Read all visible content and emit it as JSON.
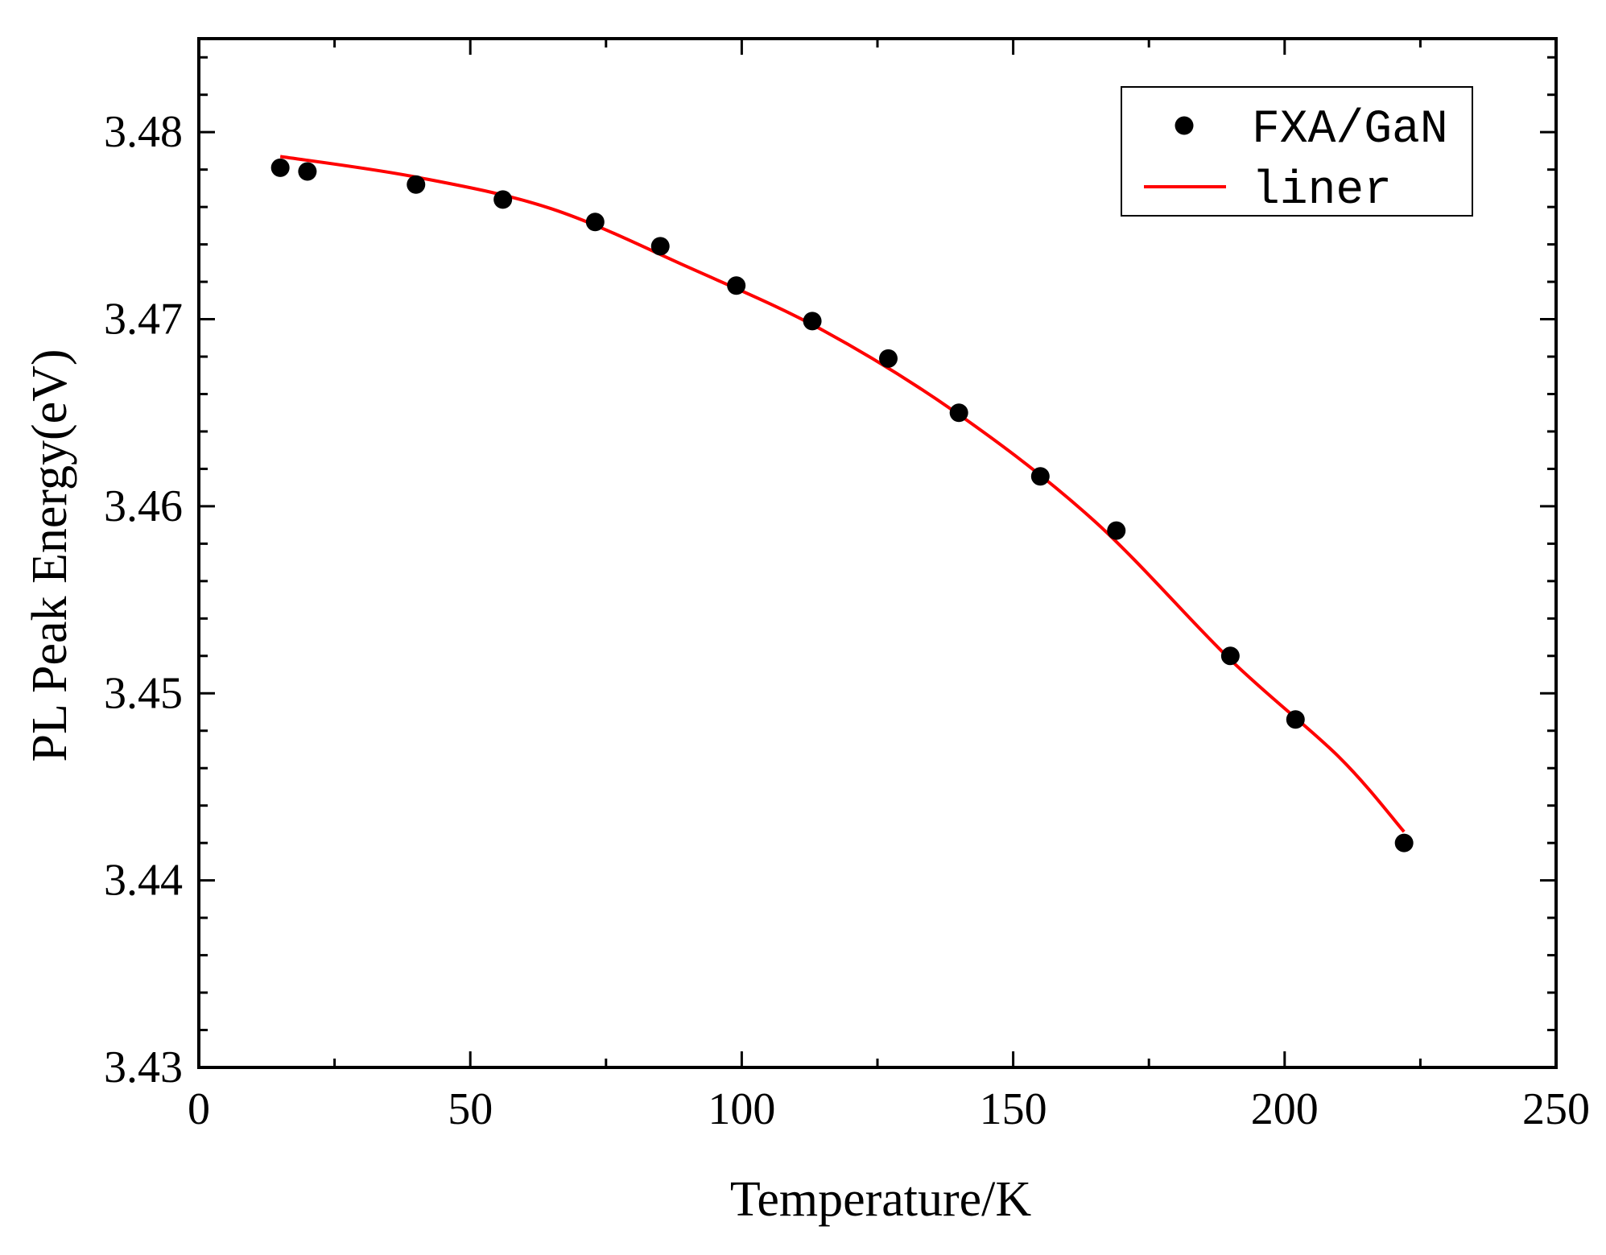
{
  "chart_data": {
    "type": "scatter",
    "xlabel": "Temperature/K",
    "ylabel": "PL Peak Energy(eV)",
    "xlim": [
      0,
      250
    ],
    "ylim": [
      3.43,
      3.485
    ],
    "x_ticks": [
      0,
      50,
      100,
      150,
      200,
      250
    ],
    "x_tick_labels": [
      "0",
      "50",
      "100",
      "150",
      "200",
      "250"
    ],
    "y_ticks": [
      3.43,
      3.44,
      3.45,
      3.46,
      3.47,
      3.48
    ],
    "y_tick_labels": [
      "3.43",
      "3.44",
      "3.45",
      "3.46",
      "3.47",
      "3.48"
    ],
    "grid": false,
    "legend_position": "top-right",
    "series": [
      {
        "name": "FXA/GaN",
        "kind": "scatter",
        "color": "#000000",
        "x": [
          15,
          20,
          40,
          56,
          73,
          85,
          99,
          113,
          127,
          140,
          155,
          169,
          190,
          202,
          222
        ],
        "y": [
          3.4781,
          3.4779,
          3.4772,
          3.4764,
          3.4752,
          3.4739,
          3.4718,
          3.4699,
          3.4679,
          3.465,
          3.4616,
          3.4587,
          3.452,
          3.4486,
          3.442
        ]
      },
      {
        "name": "liner",
        "kind": "line",
        "color": "#ff0000",
        "x": [
          15,
          40,
          65,
          90,
          115,
          140,
          165,
          190,
          210,
          222
        ],
        "y": [
          3.4787,
          3.4776,
          3.4759,
          3.4728,
          3.4694,
          3.4649,
          3.4592,
          3.4518,
          3.4466,
          3.4426
        ]
      }
    ]
  }
}
